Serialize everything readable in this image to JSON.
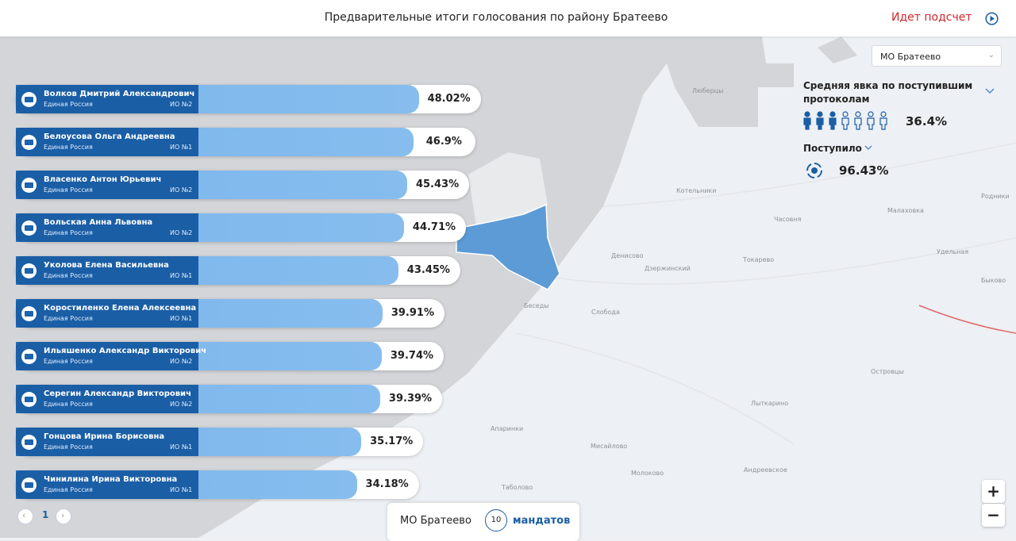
{
  "header": {
    "title": "Предварительные итоги голосования по району Братеево",
    "status": "Идет подсчет"
  },
  "district_select": "МО Братеево",
  "turnout": {
    "title": "Средняя явка по поступившим протоколам",
    "value": "36.4%"
  },
  "received": {
    "title": "Поступило",
    "value": "96.43%"
  },
  "candidates": [
    {
      "name": "Волков Дмитрий Александрович",
      "party": "Единая Россия",
      "district": "ИО №2",
      "percent": 48.02,
      "percent_label": "48.02%"
    },
    {
      "name": "Белоусова Ольга Андреевна",
      "party": "Единая Россия",
      "district": "ИО №1",
      "percent": 46.9,
      "percent_label": "46.9%"
    },
    {
      "name": "Власенко Антон Юрьевич",
      "party": "Единая Россия",
      "district": "ИО №2",
      "percent": 45.43,
      "percent_label": "45.43%"
    },
    {
      "name": "Вольская Анна Львовна",
      "party": "Единая Россия",
      "district": "ИО №2",
      "percent": 44.71,
      "percent_label": "44.71%"
    },
    {
      "name": "Уколова Елена Васильевна",
      "party": "Единая Россия",
      "district": "ИО №1",
      "percent": 43.45,
      "percent_label": "43.45%"
    },
    {
      "name": "Коростиленко Елена Алексеевна",
      "party": "Единая Россия",
      "district": "ИО №1",
      "percent": 39.91,
      "percent_label": "39.91%"
    },
    {
      "name": "Ильяшенко Александр Викторович",
      "party": "Единая Россия",
      "district": "ИО №2",
      "percent": 39.74,
      "percent_label": "39.74%"
    },
    {
      "name": "Серегин Александр Викторович",
      "party": "Единая Россия",
      "district": "ИО №2",
      "percent": 39.39,
      "percent_label": "39.39%"
    },
    {
      "name": "Гонцова Ирина Борисовна",
      "party": "Единая Россия",
      "district": "ИО №1",
      "percent": 35.17,
      "percent_label": "35.17%"
    },
    {
      "name": "Чинилина Ирина Викторовна",
      "party": "Единая Россия",
      "district": "ИО №1",
      "percent": 34.18,
      "percent_label": "34.18%"
    }
  ],
  "pagination": {
    "page": "1"
  },
  "footer": {
    "district": "МО Братеево",
    "mandates_count": "10",
    "mandates_label": "мандатов"
  },
  "zoom": {
    "in": "+",
    "out": "−"
  },
  "map": {
    "labels": [
      "Люберцы",
      "Котельники",
      "Денисово",
      "Дзержинский",
      "Токарево",
      "Часовня",
      "Слобода",
      "Беседы",
      "Апаринки",
      "Мисайлово",
      "Молоково",
      "Андреевское",
      "Островцы",
      "Лыткарино",
      "Малаховка",
      "Удельная",
      "Быково",
      "Родники",
      "Таболово"
    ]
  }
}
